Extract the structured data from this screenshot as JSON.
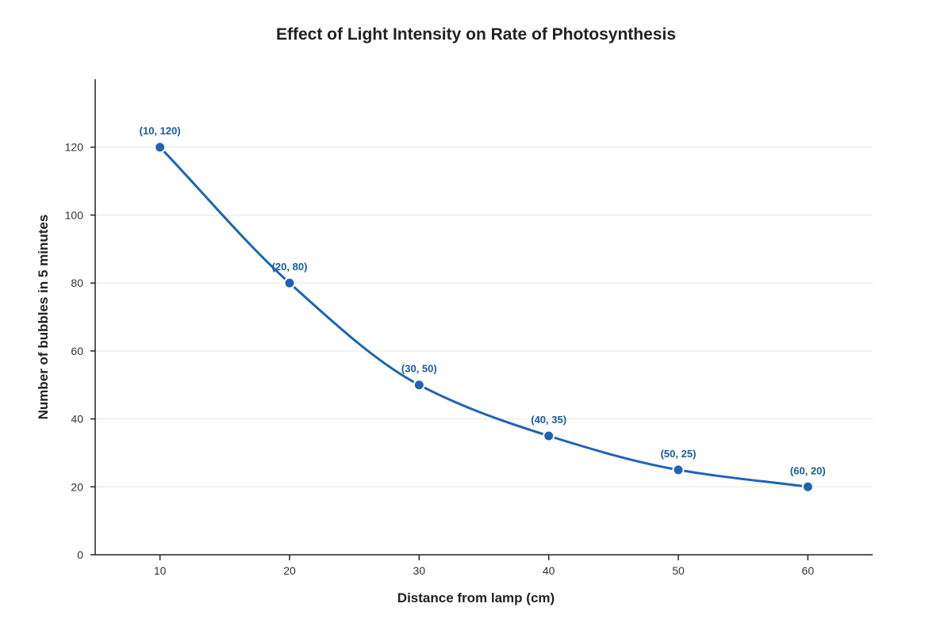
{
  "chart_data": {
    "type": "line",
    "title": "Effect of Light Intensity on Rate of Photosynthesis",
    "xlabel": "Distance from lamp (cm)",
    "ylabel": "Number of bubbles in 5 minutes",
    "xlim": [
      5,
      65
    ],
    "ylim": [
      0,
      140
    ],
    "x_ticks": [
      10,
      20,
      30,
      40,
      50,
      60
    ],
    "y_ticks": [
      0,
      20,
      40,
      60,
      80,
      100,
      120
    ],
    "grid": true,
    "smooth": true,
    "legend": "none",
    "series": [
      {
        "color": "#1f63b5",
        "label_color": "#1a5a9e",
        "points": [
          {
            "x": 10,
            "y": 120,
            "label": "(10, 120)"
          },
          {
            "x": 20,
            "y": 80,
            "label": "(20, 80)"
          },
          {
            "x": 30,
            "y": 50,
            "label": "(30, 50)"
          },
          {
            "x": 40,
            "y": 35,
            "label": "(40, 35)"
          },
          {
            "x": 50,
            "y": 25,
            "label": "(50, 25)"
          },
          {
            "x": 60,
            "y": 20,
            "label": "(60, 20)"
          }
        ]
      }
    ]
  }
}
